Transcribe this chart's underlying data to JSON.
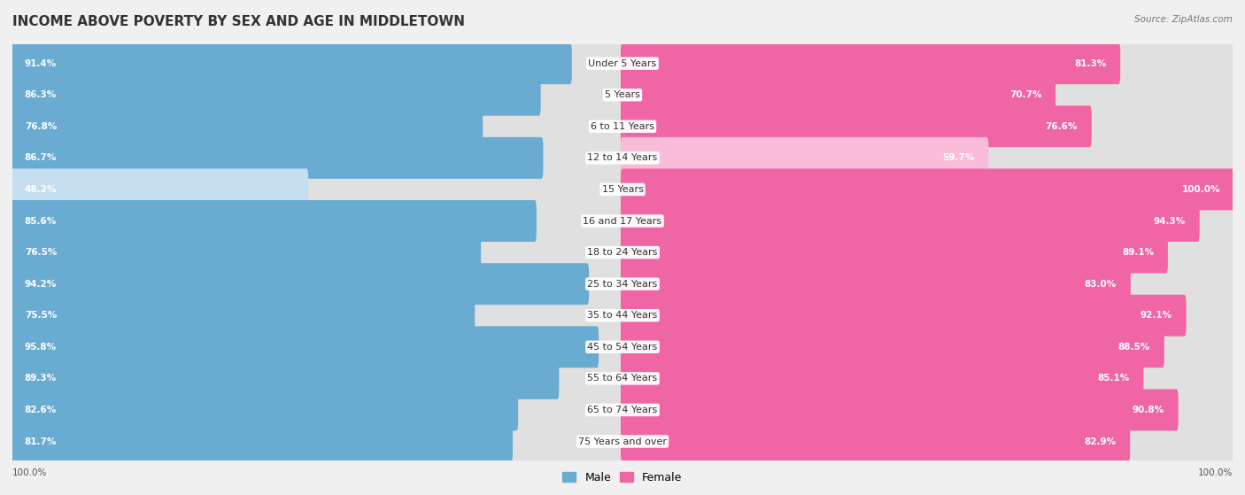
{
  "title": "INCOME ABOVE POVERTY BY SEX AND AGE IN MIDDLETOWN",
  "source": "Source: ZipAtlas.com",
  "categories": [
    "Under 5 Years",
    "5 Years",
    "6 to 11 Years",
    "12 to 14 Years",
    "15 Years",
    "16 and 17 Years",
    "18 to 24 Years",
    "25 to 34 Years",
    "35 to 44 Years",
    "45 to 54 Years",
    "55 to 64 Years",
    "65 to 74 Years",
    "75 Years and over"
  ],
  "male_values": [
    91.4,
    86.3,
    76.8,
    86.7,
    48.2,
    85.6,
    76.5,
    94.2,
    75.5,
    95.8,
    89.3,
    82.6,
    81.7
  ],
  "female_values": [
    81.3,
    70.7,
    76.6,
    59.7,
    100.0,
    94.3,
    89.1,
    83.0,
    92.1,
    88.5,
    85.1,
    90.8,
    82.9
  ],
  "male_color_dark": "#6aabd2",
  "male_color_light": "#c5dff0",
  "female_color_dark": "#f066a5",
  "female_color_light": "#f9bdd8",
  "background_color": "#f0f0f0",
  "bar_row_bg": "#e0e0e0",
  "title_fontsize": 11,
  "label_fontsize": 8,
  "value_fontsize": 7.5,
  "max_value": 100.0,
  "legend_male": "Male",
  "legend_female": "Female",
  "bottom_label": "100.0%"
}
